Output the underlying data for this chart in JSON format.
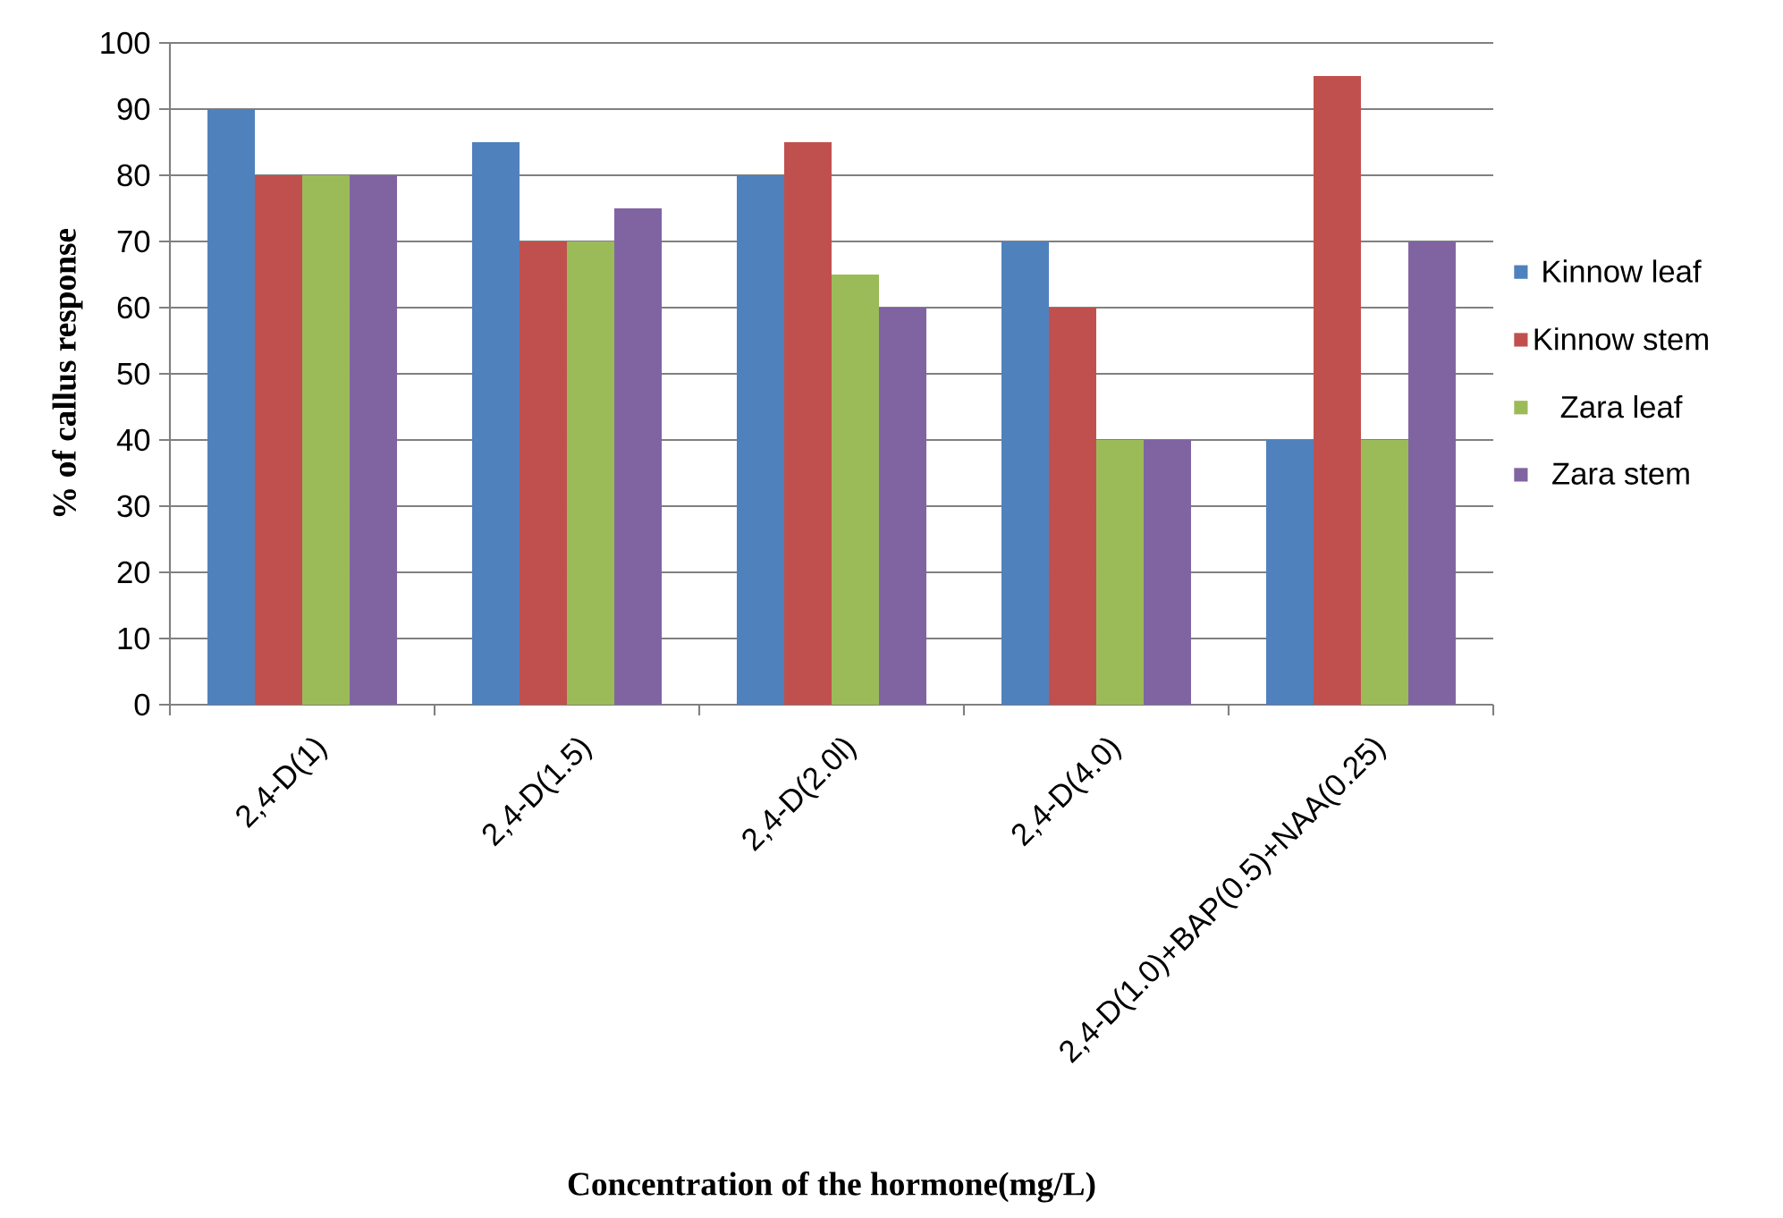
{
  "chart_data": {
    "type": "bar",
    "xlabel": "Concentration of the hormone(mg/L)",
    "ylabel": "% of callus response",
    "categories": [
      "2,4-D(1)",
      "2,4-D(1.5)",
      "2,4-D(2.0l)",
      "2,4-D(4.0)",
      "2,4-D(1.0)+BAP(0.5)+NAA(0.25)"
    ],
    "series": [
      {
        "name": "Kinnow leaf",
        "color": "#4f81bd",
        "values": [
          90,
          85,
          80,
          70,
          40
        ]
      },
      {
        "name": "Kinnow stem",
        "color": "#c0504d",
        "values": [
          80,
          70,
          85,
          60,
          95
        ]
      },
      {
        "name": "Zara leaf",
        "color": "#9bbb59",
        "values": [
          80,
          70,
          65,
          40,
          40
        ]
      },
      {
        "name": "Zara stem",
        "color": "#8064a2",
        "values": [
          80,
          75,
          60,
          40,
          70
        ]
      }
    ],
    "ylim": [
      0,
      100
    ],
    "yticks": [
      0,
      10,
      20,
      30,
      40,
      50,
      60,
      70,
      80,
      90,
      100
    ],
    "grid": "y",
    "legend": "right"
  }
}
